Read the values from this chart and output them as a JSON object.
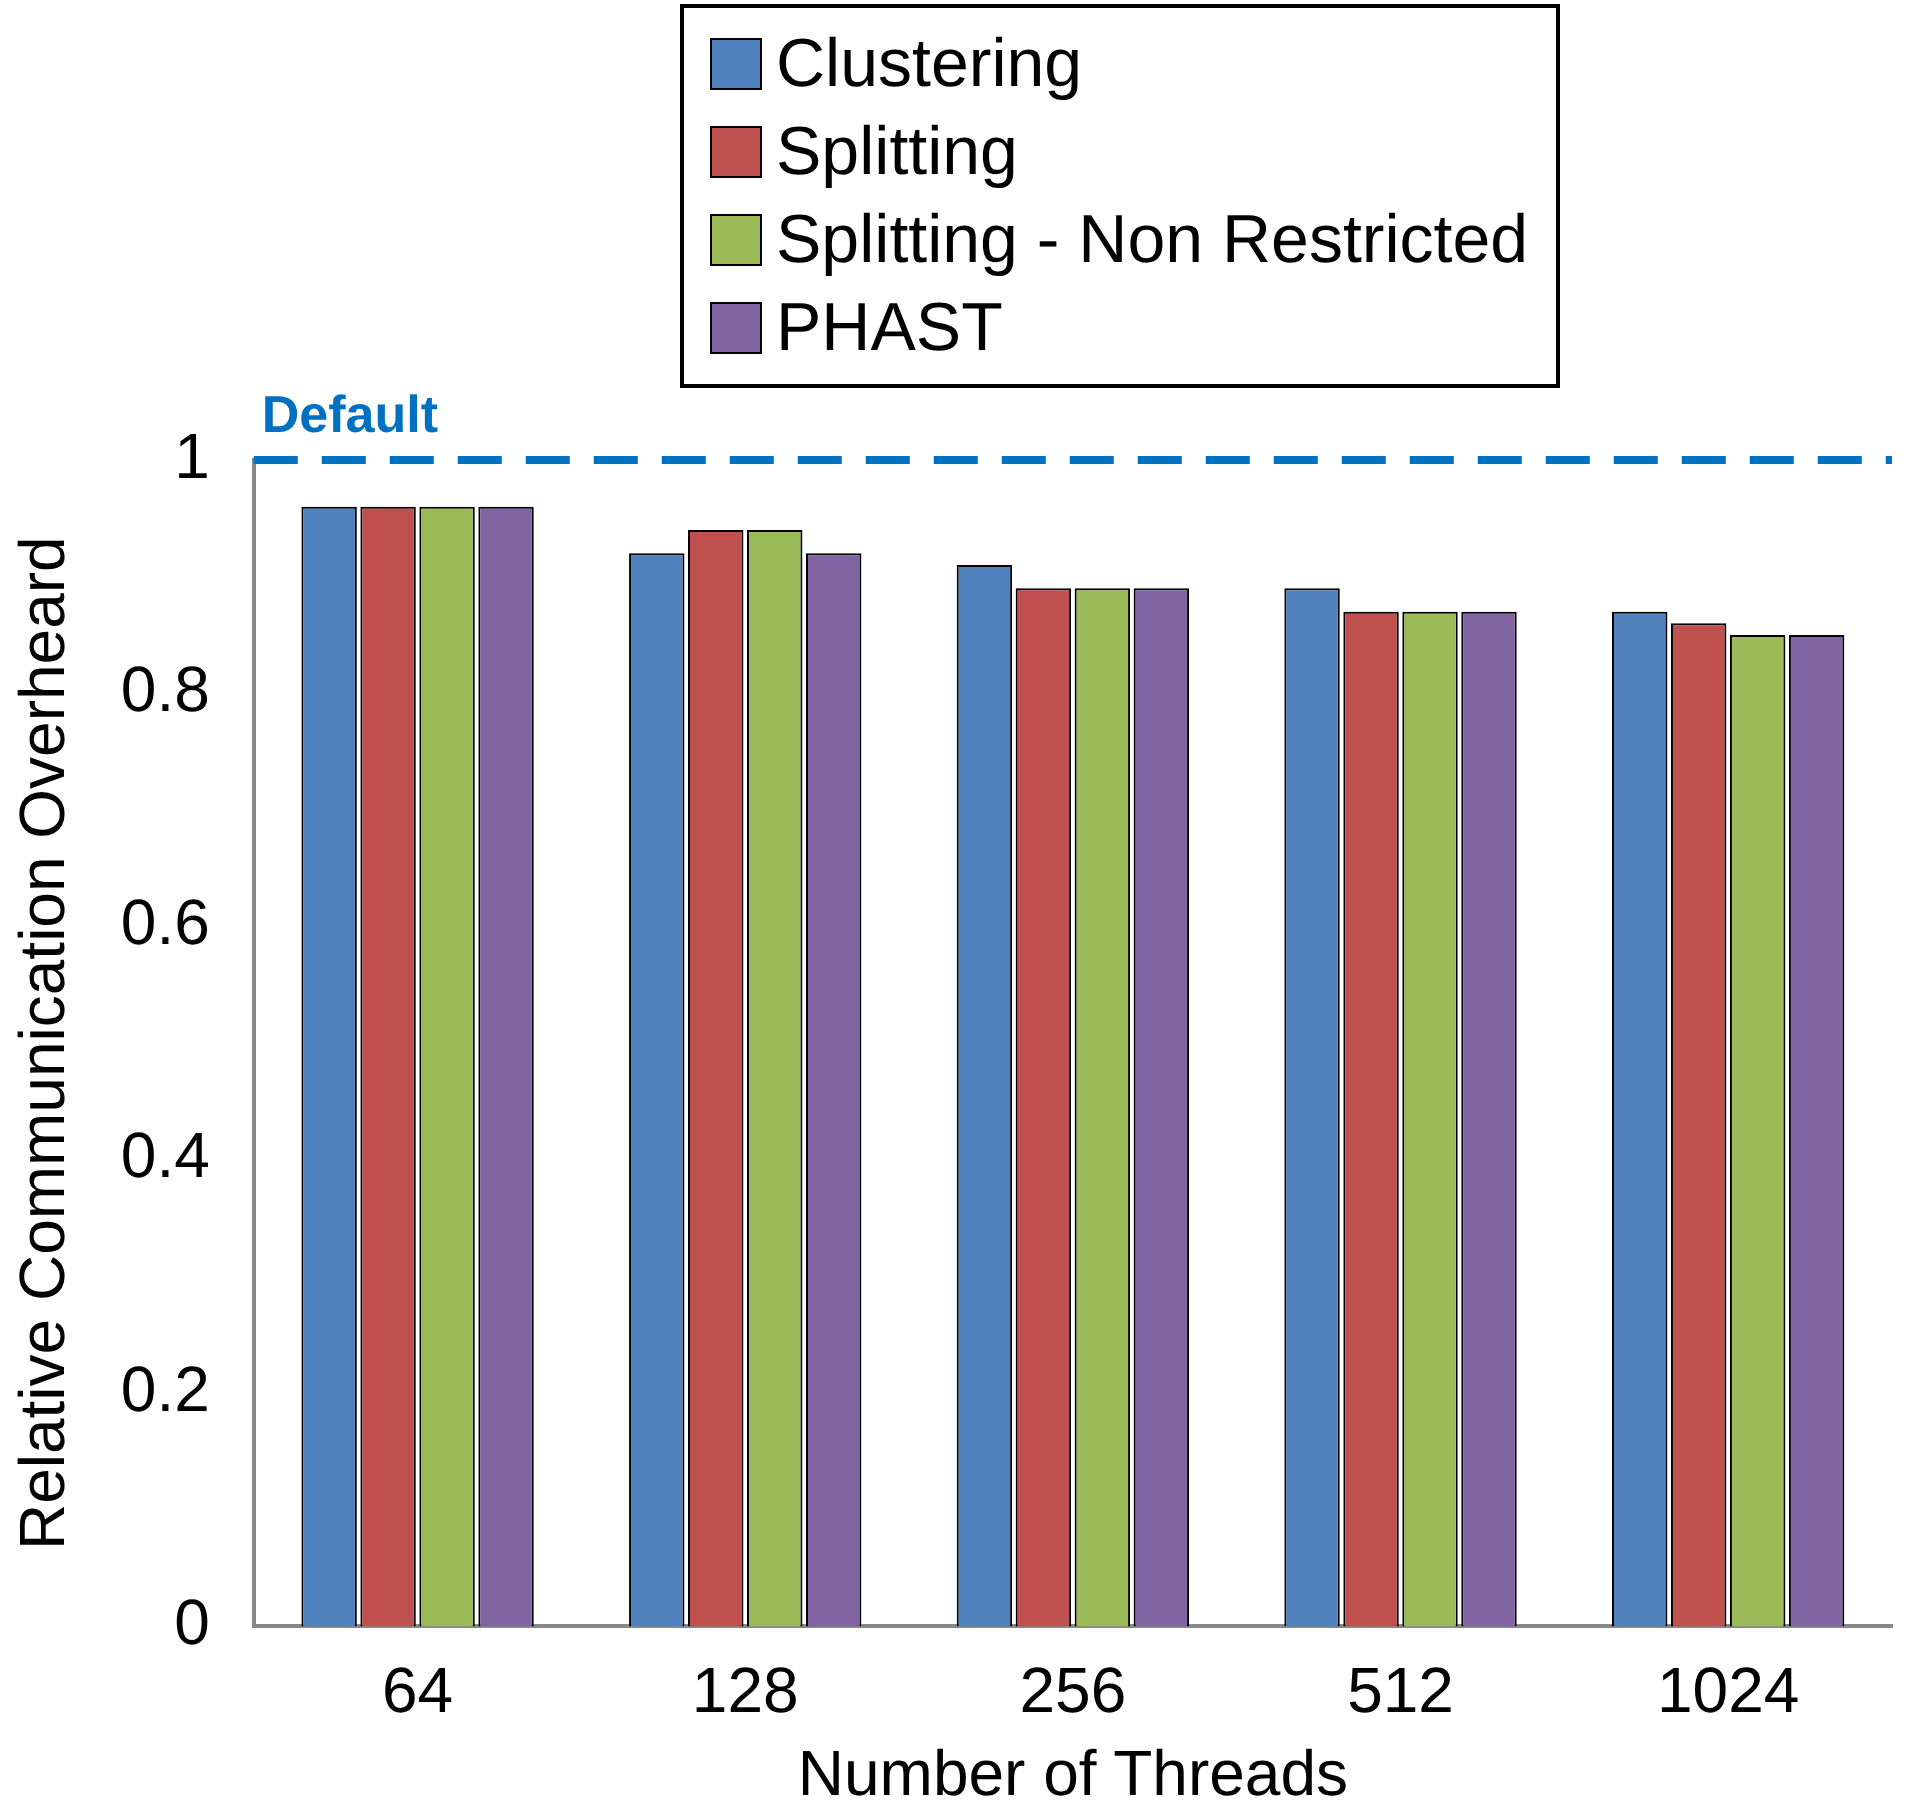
{
  "chart_data": {
    "type": "bar",
    "xlabel": "Number of Threads",
    "ylabel": "Relative Communication Overheard",
    "categories": [
      "64",
      "128",
      "256",
      "512",
      "1024"
    ],
    "series": [
      {
        "name": "Clustering",
        "color": "#4f81bd",
        "values": [
          0.96,
          0.92,
          0.91,
          0.89,
          0.87
        ]
      },
      {
        "name": "Splitting",
        "color": "#c0504d",
        "values": [
          0.96,
          0.94,
          0.89,
          0.87,
          0.86
        ]
      },
      {
        "name": "Splitting - Non Restricted",
        "color": "#9bbb59",
        "values": [
          0.96,
          0.94,
          0.89,
          0.87,
          0.85
        ]
      },
      {
        "name": "PHAST",
        "color": "#8064a2",
        "values": [
          0.96,
          0.92,
          0.89,
          0.87,
          0.85
        ]
      }
    ],
    "ylim": [
      0,
      1
    ],
    "yticks": [
      0,
      0.2,
      0.4,
      0.6,
      0.8,
      1
    ],
    "grid": false,
    "legend": "top",
    "ref_lines": [
      {
        "axis": "y",
        "value": 1,
        "label": "Default",
        "color": "#0070c0",
        "line_style": "dashed"
      }
    ]
  }
}
